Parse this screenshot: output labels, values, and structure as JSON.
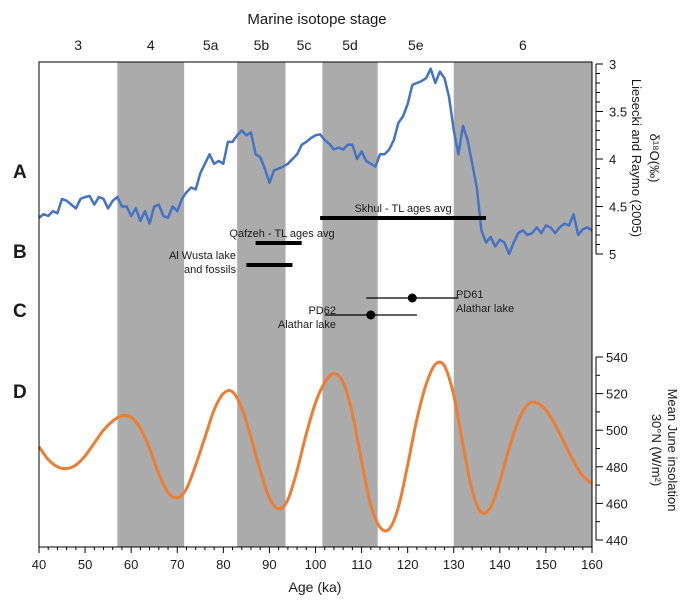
{
  "chart_data": {
    "type": "line",
    "top_title": "Marine isotope stage",
    "xlabel": "Age (ka)",
    "xlim": [
      40,
      160
    ],
    "x_ticks": [
      40,
      50,
      60,
      70,
      80,
      90,
      100,
      110,
      120,
      130,
      140,
      150,
      160
    ],
    "stages": [
      {
        "label": "3",
        "start": 40,
        "end": 57,
        "shaded": false
      },
      {
        "label": "4",
        "start": 57,
        "end": 71.5,
        "shaded": true
      },
      {
        "label": "5a",
        "start": 71.5,
        "end": 83,
        "shaded": false
      },
      {
        "label": "5b",
        "start": 83,
        "end": 93.5,
        "shaded": true
      },
      {
        "label": "5c",
        "start": 93.5,
        "end": 101.5,
        "shaded": false
      },
      {
        "label": "5d",
        "start": 101.5,
        "end": 113.5,
        "shaded": true
      },
      {
        "label": "5e",
        "start": 113.5,
        "end": 130,
        "shaded": false
      },
      {
        "label": "6",
        "start": 130,
        "end": 160,
        "shaded": true
      }
    ],
    "panel_letters": [
      "A",
      "B",
      "C",
      "D"
    ],
    "isotope": {
      "ylabel_main": "δ¹⁸O(‰)",
      "ylabel_source": "Liesecki and Raymo (2005)",
      "ylim": [
        3,
        5
      ],
      "y_inverted": true,
      "y_ticks": [
        "3",
        "3.5",
        "4",
        "4.5",
        "5"
      ],
      "color": "#4472c4",
      "x": [
        40,
        41,
        42,
        43,
        44,
        45,
        46,
        47,
        48,
        49,
        50,
        51,
        52,
        53,
        54,
        55,
        56,
        57,
        58,
        59,
        60,
        61,
        62,
        63,
        64,
        65,
        66,
        67,
        68,
        69,
        70,
        71,
        72,
        73,
        74,
        75,
        76,
        77,
        78,
        79,
        80,
        81,
        82,
        83,
        84,
        85,
        86,
        87,
        88,
        89,
        90,
        91,
        92,
        93,
        94,
        95,
        96,
        97,
        98,
        99,
        100,
        101,
        102,
        103,
        104,
        105,
        106,
        107,
        108,
        109,
        110,
        111,
        112,
        113,
        114,
        115,
        116,
        117,
        118,
        119,
        120,
        121,
        122,
        123,
        124,
        125,
        126,
        127,
        128,
        129,
        130,
        131,
        132,
        133,
        134,
        135,
        136,
        137,
        138,
        139,
        140,
        141,
        142,
        143,
        144,
        145,
        146,
        147,
        148,
        149,
        150,
        151,
        152,
        153,
        154,
        155,
        156,
        157,
        158,
        159,
        160
      ],
      "values": [
        4.62,
        4.58,
        4.6,
        4.55,
        4.57,
        4.42,
        4.44,
        4.48,
        4.52,
        4.42,
        4.4,
        4.39,
        4.48,
        4.4,
        4.42,
        4.52,
        4.44,
        4.4,
        4.5,
        4.5,
        4.6,
        4.52,
        4.65,
        4.55,
        4.68,
        4.5,
        4.48,
        4.6,
        4.62,
        4.5,
        4.55,
        4.42,
        4.35,
        4.3,
        4.32,
        4.15,
        4.05,
        3.95,
        4.05,
        4.02,
        4.05,
        3.82,
        3.82,
        3.75,
        3.7,
        3.75,
        3.72,
        3.95,
        3.98,
        4.1,
        4.25,
        4.12,
        4.1,
        4.08,
        4.05,
        4.0,
        3.95,
        3.85,
        3.82,
        3.78,
        3.75,
        3.74,
        3.8,
        3.84,
        3.9,
        3.88,
        3.9,
        3.85,
        3.85,
        4.0,
        3.92,
        4.02,
        4.05,
        4.08,
        3.95,
        3.95,
        3.9,
        3.8,
        3.62,
        3.55,
        3.42,
        3.22,
        3.2,
        3.18,
        3.15,
        3.05,
        3.2,
        3.08,
        3.15,
        3.35,
        3.7,
        3.95,
        3.65,
        3.8,
        4.05,
        4.3,
        4.75,
        4.88,
        4.82,
        4.92,
        4.85,
        4.88,
        5.0,
        4.88,
        4.78,
        4.75,
        4.8,
        4.78,
        4.72,
        4.78,
        4.7,
        4.72,
        4.78,
        4.72,
        4.68,
        4.7,
        4.58,
        4.8,
        4.74,
        4.72,
        4.75
      ]
    },
    "ranges": [
      {
        "label": "Skhul - TL ages avg",
        "start": 101,
        "end": 137
      },
      {
        "label": "Qafzeh - TL ages avg",
        "start": 87,
        "end": 97
      },
      {
        "label": "Al Wusta lake",
        "label2": "and fossils",
        "start": 85,
        "end": 95
      }
    ],
    "points": [
      {
        "label": "PD61",
        "label2": "Alathar lake",
        "x": 121,
        "xerr": [
          111,
          131
        ]
      },
      {
        "label": "PD62",
        "label2": "Alathar lake",
        "x": 112,
        "xerr": [
          102,
          122
        ]
      }
    ],
    "insolation": {
      "ylabel_main": "Mean June insolation",
      "ylabel_sub": "30°N (W/m²)",
      "ylim": [
        440,
        540
      ],
      "y_ticks": [
        440,
        460,
        480,
        500,
        520,
        540
      ],
      "color": "#ed7d31",
      "x": [
        40,
        42,
        44,
        46,
        48,
        50,
        52,
        54,
        56,
        58,
        60,
        62,
        64,
        66,
        68,
        70,
        72,
        74,
        76,
        78,
        80,
        82,
        84,
        86,
        88,
        90,
        92,
        94,
        96,
        98,
        100,
        102,
        104,
        106,
        108,
        110,
        112,
        114,
        116,
        118,
        120,
        122,
        124,
        126,
        128,
        130,
        132,
        134,
        136,
        138,
        140,
        142,
        144,
        146,
        148,
        150,
        152,
        154,
        156,
        158,
        160
      ],
      "values": [
        491,
        484,
        480,
        479,
        481,
        486,
        493,
        500,
        505,
        508,
        507,
        501,
        490,
        476,
        466,
        463,
        468,
        481,
        496,
        511,
        520,
        521,
        512,
        496,
        478,
        463,
        457,
        462,
        478,
        498,
        515,
        526,
        531,
        526,
        509,
        483,
        459,
        447,
        446,
        458,
        481,
        506,
        525,
        536,
        535,
        519,
        492,
        467,
        455,
        458,
        472,
        490,
        505,
        514,
        515,
        511,
        503,
        493,
        483,
        475,
        471
      ]
    }
  }
}
